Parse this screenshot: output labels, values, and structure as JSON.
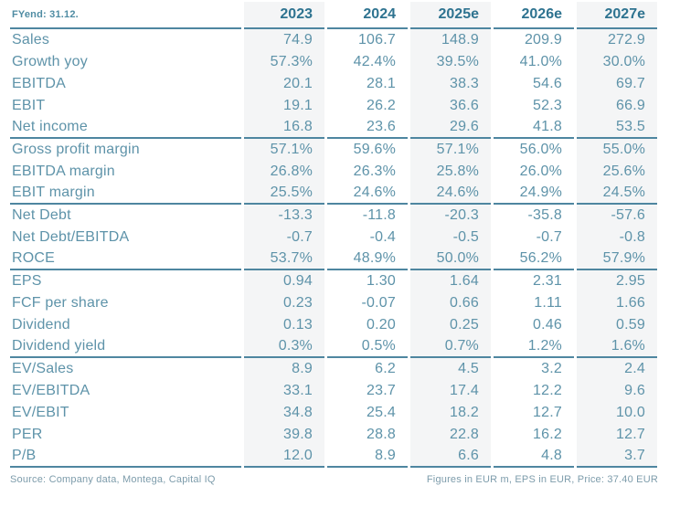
{
  "colors": {
    "text": "#5e93a9",
    "header_text": "#2e7390",
    "line": "#4e86a0",
    "column_shade": "#f4f5f6",
    "footer_text": "#7d9cab"
  },
  "footer": {
    "source": "Source: Company data, Montega, Capital IQ",
    "figures_note": "Figures in EUR m, EPS in EUR, Price: 37.40 EUR"
  },
  "chart_data": {
    "type": "table",
    "fy_label": "FYend: 31.12.",
    "columns": [
      "2023",
      "2024",
      "2025e",
      "2026e",
      "2027e"
    ],
    "shaded_columns": [
      "2023",
      "2025e",
      "2027e"
    ],
    "sections": [
      {
        "rows": [
          {
            "label": "Sales",
            "values": [
              "74.9",
              "106.7",
              "148.9",
              "209.9",
              "272.9"
            ]
          },
          {
            "label": "Growth yoy",
            "values": [
              "57.3%",
              "42.4%",
              "39.5%",
              "41.0%",
              "30.0%"
            ]
          },
          {
            "label": "EBITDA",
            "values": [
              "20.1",
              "28.1",
              "38.3",
              "54.6",
              "69.7"
            ]
          },
          {
            "label": "EBIT",
            "values": [
              "19.1",
              "26.2",
              "36.6",
              "52.3",
              "66.9"
            ]
          },
          {
            "label": "Net income",
            "values": [
              "16.8",
              "23.6",
              "29.6",
              "41.8",
              "53.5"
            ]
          }
        ]
      },
      {
        "rows": [
          {
            "label": "Gross profit margin",
            "values": [
              "57.1%",
              "59.6%",
              "57.1%",
              "56.0%",
              "55.0%"
            ]
          },
          {
            "label": "EBITDA margin",
            "values": [
              "26.8%",
              "26.3%",
              "25.8%",
              "26.0%",
              "25.6%"
            ]
          },
          {
            "label": "EBIT margin",
            "values": [
              "25.5%",
              "24.6%",
              "24.6%",
              "24.9%",
              "24.5%"
            ]
          }
        ]
      },
      {
        "rows": [
          {
            "label": "Net Debt",
            "values": [
              "-13.3",
              "-11.8",
              "-20.3",
              "-35.8",
              "-57.6"
            ]
          },
          {
            "label": "Net Debt/EBITDA",
            "values": [
              "-0.7",
              "-0.4",
              "-0.5",
              "-0.7",
              "-0.8"
            ]
          },
          {
            "label": "ROCE",
            "values": [
              "53.7%",
              "48.9%",
              "50.0%",
              "56.2%",
              "57.9%"
            ]
          }
        ]
      },
      {
        "rows": [
          {
            "label": "EPS",
            "values": [
              "0.94",
              "1.30",
              "1.64",
              "2.31",
              "2.95"
            ]
          },
          {
            "label": "FCF per share",
            "values": [
              "0.23",
              "-0.07",
              "0.66",
              "1.11",
              "1.66"
            ]
          },
          {
            "label": "Dividend",
            "values": [
              "0.13",
              "0.20",
              "0.25",
              "0.46",
              "0.59"
            ]
          },
          {
            "label": "Dividend yield",
            "values": [
              "0.3%",
              "0.5%",
              "0.7%",
              "1.2%",
              "1.6%"
            ]
          }
        ]
      },
      {
        "rows": [
          {
            "label": "EV/Sales",
            "values": [
              "8.9",
              "6.2",
              "4.5",
              "3.2",
              "2.4"
            ]
          },
          {
            "label": "EV/EBITDA",
            "values": [
              "33.1",
              "23.7",
              "17.4",
              "12.2",
              "9.6"
            ]
          },
          {
            "label": "EV/EBIT",
            "values": [
              "34.8",
              "25.4",
              "18.2",
              "12.7",
              "10.0"
            ]
          },
          {
            "label": "PER",
            "values": [
              "39.8",
              "28.8",
              "22.8",
              "16.2",
              "12.7"
            ]
          },
          {
            "label": "P/B",
            "values": [
              "12.0",
              "8.9",
              "6.6",
              "4.8",
              "3.7"
            ]
          }
        ]
      }
    ]
  }
}
